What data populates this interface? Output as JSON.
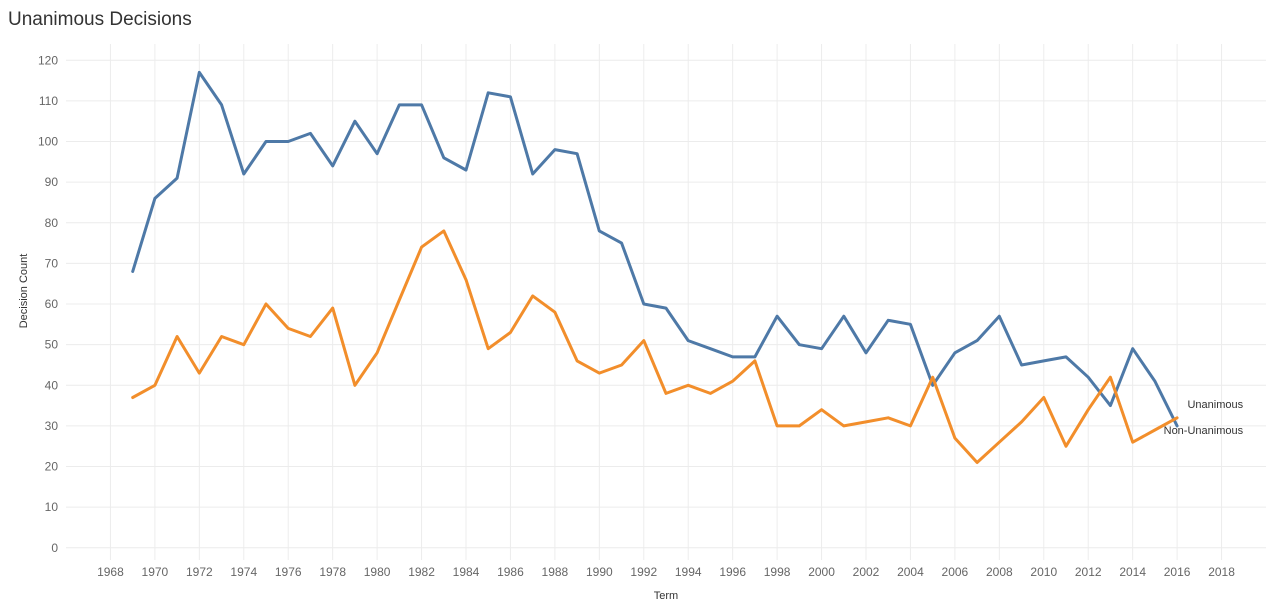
{
  "chart_title": "Unanimous Decisions",
  "chart_data": {
    "type": "line",
    "title": "Unanimous Decisions",
    "xlabel": "Term",
    "ylabel": "Decision Count",
    "xlim": [
      1966,
      2020
    ],
    "ylim": [
      -3,
      124
    ],
    "x_ticks": [
      1968,
      1970,
      1972,
      1974,
      1976,
      1978,
      1980,
      1982,
      1984,
      1986,
      1988,
      1990,
      1992,
      1994,
      1996,
      1998,
      2000,
      2002,
      2004,
      2006,
      2008,
      2010,
      2012,
      2014,
      2016,
      2018
    ],
    "y_ticks": [
      0,
      10,
      20,
      30,
      40,
      50,
      60,
      70,
      80,
      90,
      100,
      110,
      120
    ],
    "grid": true,
    "x": [
      1969,
      1970,
      1971,
      1972,
      1973,
      1974,
      1975,
      1976,
      1977,
      1978,
      1979,
      1980,
      1981,
      1982,
      1983,
      1984,
      1985,
      1986,
      1987,
      1988,
      1989,
      1990,
      1991,
      1992,
      1993,
      1994,
      1995,
      1996,
      1997,
      1998,
      1999,
      2000,
      2001,
      2002,
      2003,
      2004,
      2005,
      2006,
      2007,
      2008,
      2009,
      2010,
      2011,
      2012,
      2013,
      2014,
      2015,
      2016
    ],
    "series": [
      {
        "name": "Unanimous",
        "color": "#4e79a7",
        "values": [
          68,
          86,
          91,
          117,
          109,
          92,
          100,
          100,
          102,
          94,
          105,
          97,
          109,
          109,
          96,
          93,
          112,
          111,
          92,
          98,
          97,
          78,
          75,
          60,
          59,
          51,
          49,
          47,
          47,
          57,
          50,
          49,
          57,
          48,
          56,
          55,
          40,
          48,
          51,
          57,
          45,
          46,
          47,
          42,
          35,
          49,
          41,
          30
        ]
      },
      {
        "name": "Non-Unanimous",
        "color": "#f28e2b",
        "values": [
          37,
          40,
          52,
          43,
          52,
          50,
          60,
          54,
          52,
          59,
          40,
          48,
          61,
          74,
          78,
          66,
          49,
          53,
          62,
          58,
          46,
          43,
          45,
          51,
          38,
          40,
          38,
          41,
          46,
          30,
          30,
          34,
          30,
          31,
          32,
          30,
          42,
          27,
          21,
          26,
          31,
          37,
          25,
          34,
          42,
          26,
          29,
          32
        ]
      }
    ]
  }
}
